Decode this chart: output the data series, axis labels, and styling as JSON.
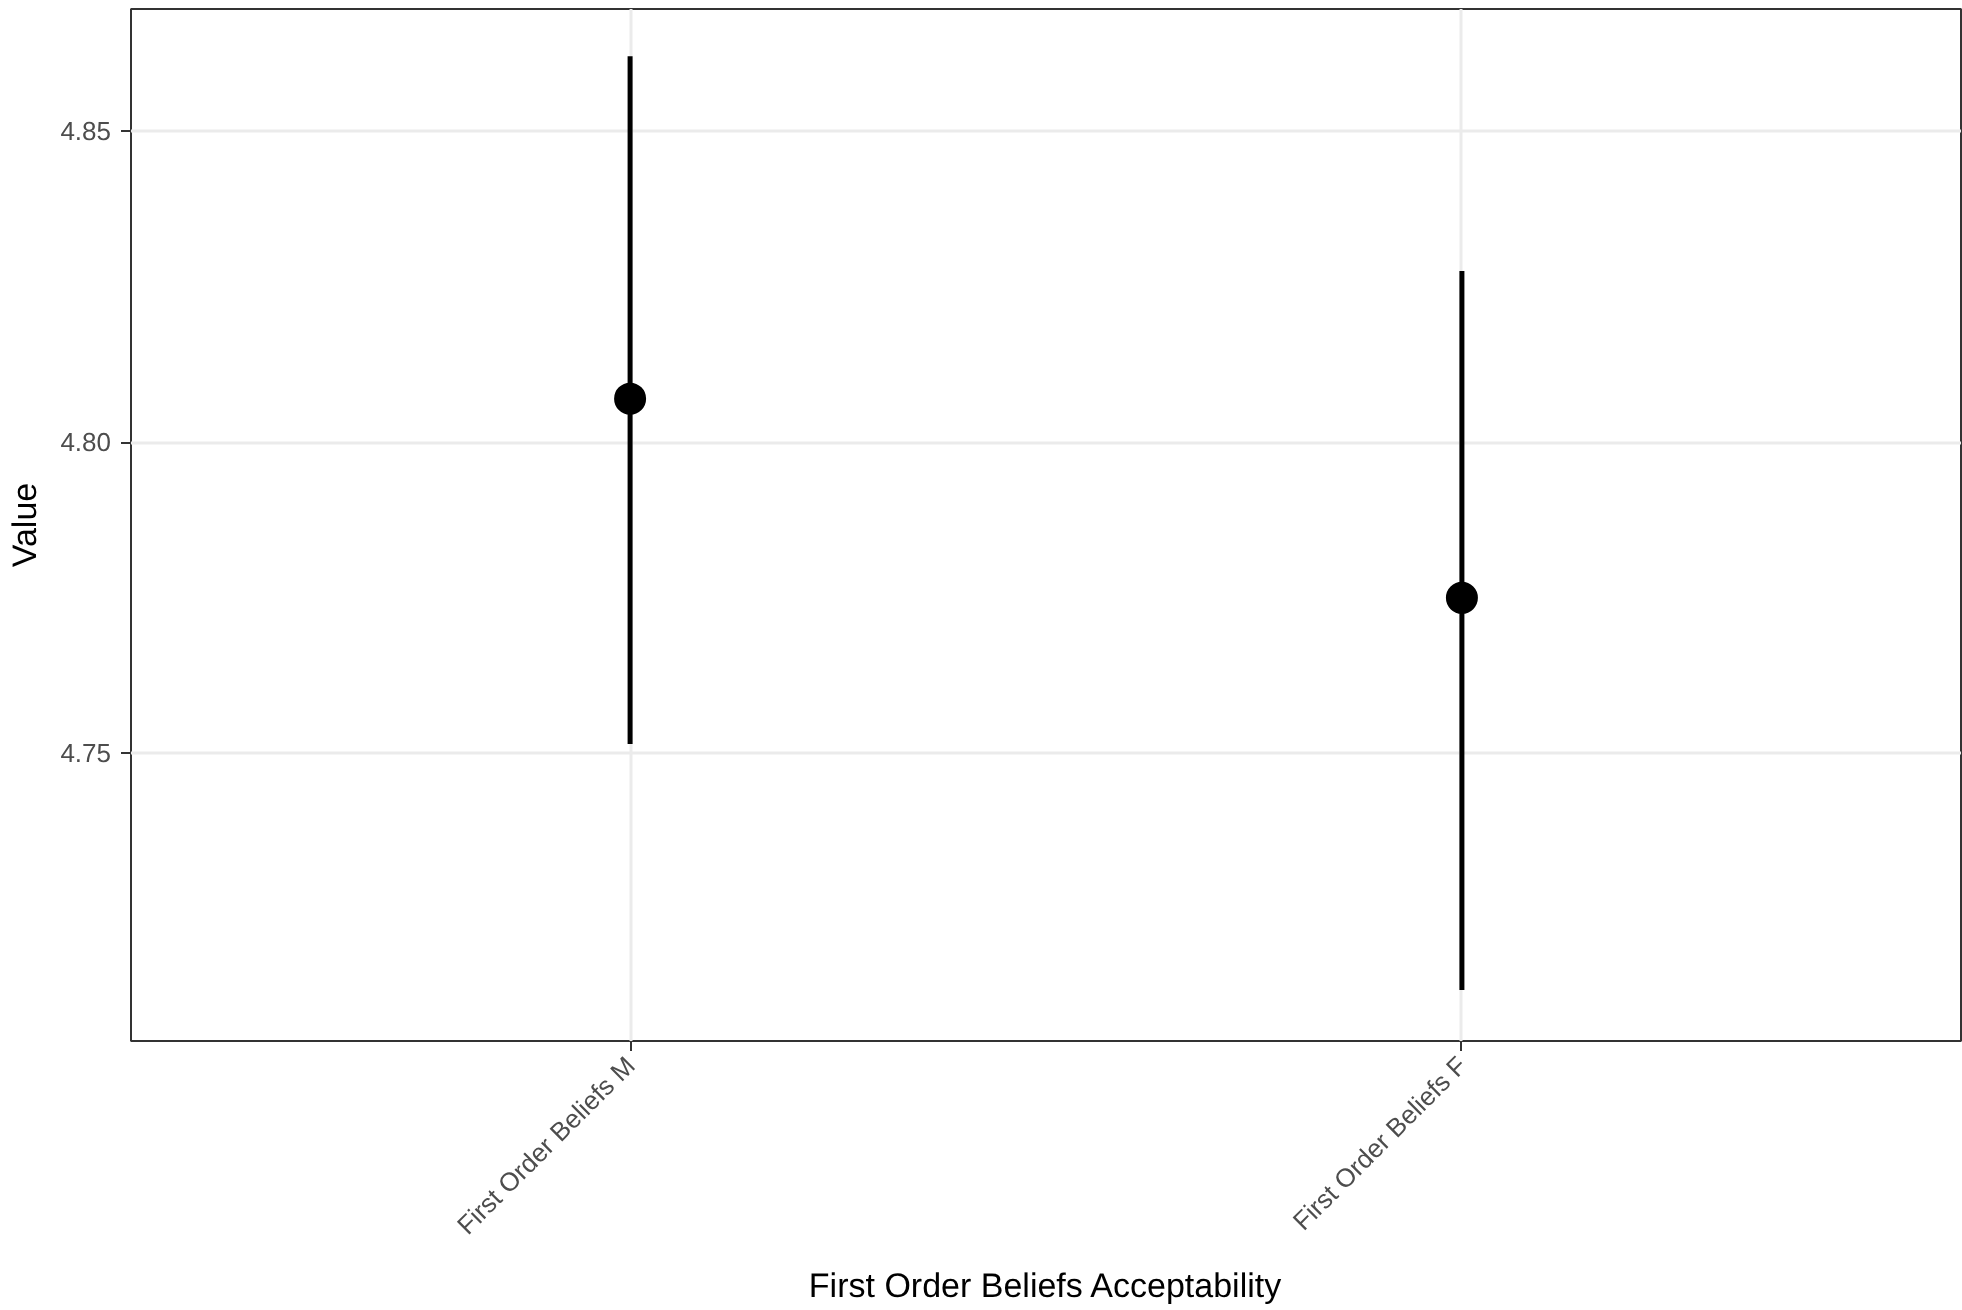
{
  "chart_data": {
    "type": "scatter",
    "xlabel": "First Order Beliefs Acceptability",
    "ylabel": "Value",
    "categories": [
      "First Order Beliefs M",
      "First Order Beliefs F"
    ],
    "series": [
      {
        "color": "#000000",
        "values": [
          4.807,
          4.775
        ],
        "errors": [
          [
            4.7515,
            4.862
          ],
          [
            4.712,
            4.8275
          ]
        ]
      }
    ],
    "ylim": [
      4.7038,
      4.8696
    ],
    "yticks": [
      {
        "value": 4.75,
        "label": "4.75"
      },
      {
        "value": 4.8,
        "label": "4.80"
      },
      {
        "value": 4.85,
        "label": "4.85"
      }
    ],
    "grid": true,
    "marker": "circle"
  }
}
